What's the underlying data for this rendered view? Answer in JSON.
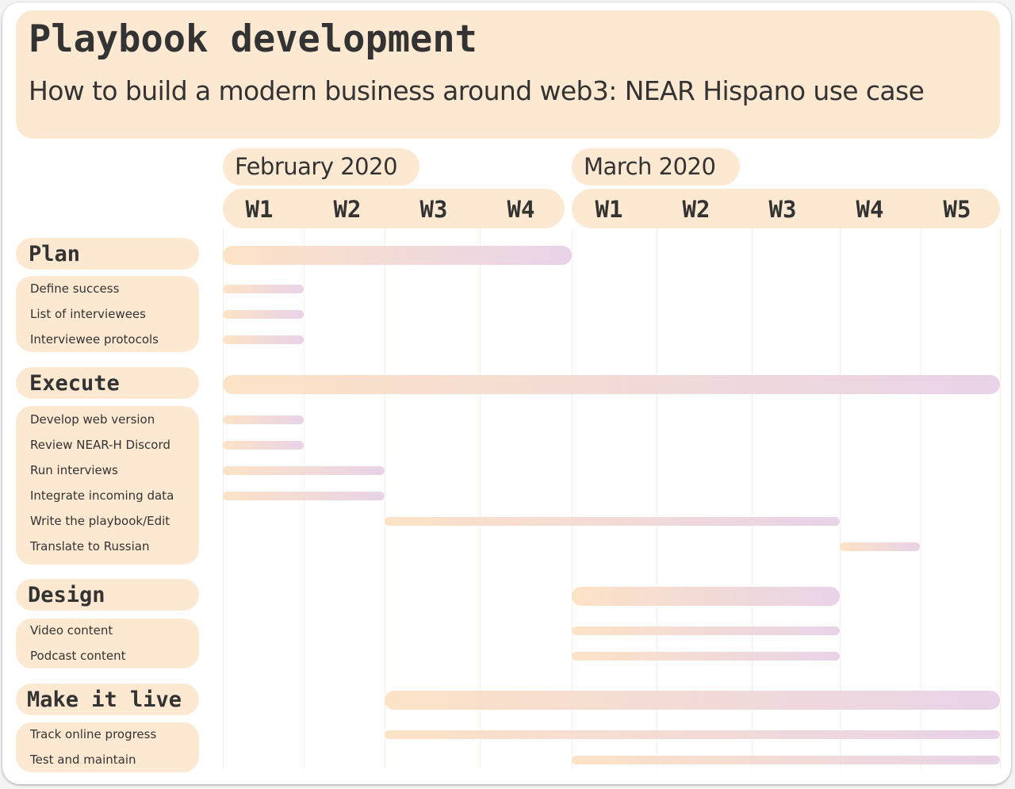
{
  "title": "Playbook development",
  "subtitle": "How to build a modern business around web3: NEAR Hispano use case",
  "chart_data": {
    "type": "gantt",
    "months": [
      {
        "label": "February 2020",
        "weeks": [
          "W1",
          "W2",
          "W3",
          "W4"
        ]
      },
      {
        "label": "March 2020",
        "weeks": [
          "W1",
          "W2",
          "W3",
          "W4",
          "W5"
        ]
      }
    ],
    "groups": [
      {
        "name": "Plan",
        "start": 0,
        "end": 4,
        "tasks": [
          {
            "name": "Define success",
            "start": 0,
            "end": 1
          },
          {
            "name": "List of interviewees",
            "start": 0,
            "end": 1
          },
          {
            "name": "Interviewee protocols",
            "start": 0,
            "end": 1
          }
        ]
      },
      {
        "name": "Execute",
        "start": 0,
        "end": 9,
        "tasks": [
          {
            "name": "Develop web version",
            "start": 0,
            "end": 1
          },
          {
            "name": "Review NEAR-H Discord",
            "start": 0,
            "end": 1
          },
          {
            "name": "Run interviews",
            "start": 0,
            "end": 2
          },
          {
            "name": "Integrate incoming data",
            "start": 0,
            "end": 2
          },
          {
            "name": "Write the playbook/Edit",
            "start": 2,
            "end": 7
          },
          {
            "name": "Translate to Russian",
            "start": 7,
            "end": 8
          }
        ]
      },
      {
        "name": "Design",
        "start": 4,
        "end": 7,
        "tasks": [
          {
            "name": "Video content",
            "start": 4,
            "end": 7
          },
          {
            "name": "Podcast content",
            "start": 4,
            "end": 7
          }
        ]
      },
      {
        "name": "Make it live",
        "start": 2,
        "end": 9,
        "tasks": [
          {
            "name": "Track online progress",
            "start": 2,
            "end": 9
          },
          {
            "name": "Test and maintain",
            "start": 4,
            "end": 9
          }
        ]
      }
    ]
  }
}
